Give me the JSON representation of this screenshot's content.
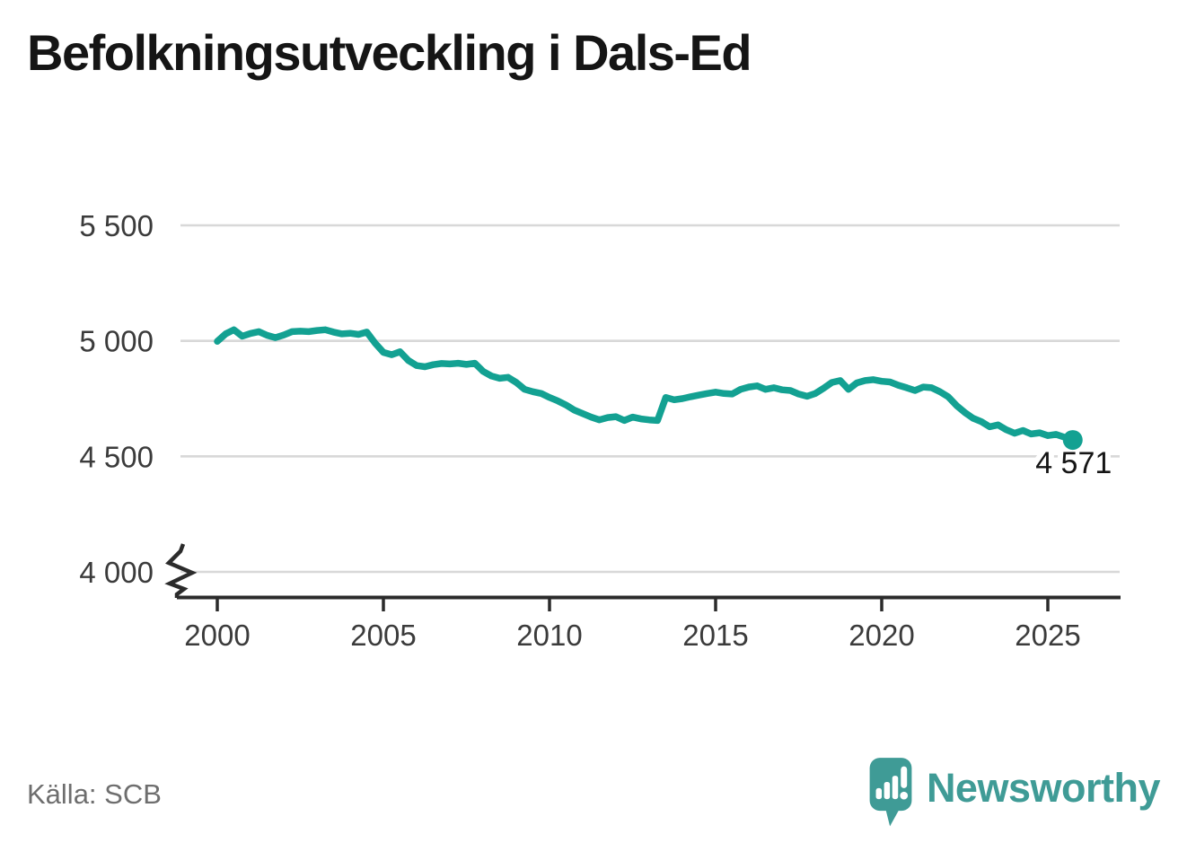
{
  "page": {
    "title": "Befolkningsutveckling i Dals-Ed",
    "source_label": "Källa: SCB",
    "brand": {
      "wordmark": "Newsworthy",
      "color": "#3f9b96"
    }
  },
  "chart_data": {
    "type": "line",
    "title": "Befolkningsutveckling i Dals-Ed",
    "xlabel": "",
    "ylabel": "",
    "legend": "none",
    "grid": "horizontal-only",
    "y_axis_break": true,
    "line_color": "#13a192",
    "axis_color": "#2b2b2b",
    "grid_color": "#d8d8d8",
    "tick_label_color": "#3b3b3b",
    "x_ticks": [
      2000,
      2005,
      2010,
      2015,
      2020,
      2025
    ],
    "x_tick_labels": [
      "2000",
      "2005",
      "2010",
      "2015",
      "2020",
      "2025"
    ],
    "y_ticks": [
      4000,
      4500,
      5000,
      5500
    ],
    "y_tick_labels": [
      "4 000",
      "4 500",
      "5 000",
      "5 500"
    ],
    "xlim": [
      1998.8,
      2027.3
    ],
    "ylim": [
      4000,
      5500
    ],
    "end_point": {
      "label": "4 571",
      "value": 4571,
      "x": 2025.75
    },
    "series": [
      {
        "name": "Dals-Ed befolkning",
        "points": [
          [
            2000.0,
            4998
          ],
          [
            2000.25,
            5030
          ],
          [
            2000.5,
            5048
          ],
          [
            2000.75,
            5020
          ],
          [
            2001.0,
            5032
          ],
          [
            2001.25,
            5040
          ],
          [
            2001.5,
            5024
          ],
          [
            2001.75,
            5014
          ],
          [
            2002.0,
            5025
          ],
          [
            2002.25,
            5040
          ],
          [
            2002.5,
            5042
          ],
          [
            2002.75,
            5040
          ],
          [
            2003.0,
            5045
          ],
          [
            2003.25,
            5048
          ],
          [
            2003.5,
            5038
          ],
          [
            2003.75,
            5030
          ],
          [
            2004.0,
            5033
          ],
          [
            2004.25,
            5028
          ],
          [
            2004.5,
            5038
          ],
          [
            2004.75,
            4990
          ],
          [
            2005.0,
            4950
          ],
          [
            2005.25,
            4940
          ],
          [
            2005.5,
            4953
          ],
          [
            2005.75,
            4915
          ],
          [
            2006.0,
            4893
          ],
          [
            2006.25,
            4888
          ],
          [
            2006.5,
            4897
          ],
          [
            2006.75,
            4902
          ],
          [
            2007.0,
            4900
          ],
          [
            2007.25,
            4903
          ],
          [
            2007.5,
            4898
          ],
          [
            2007.75,
            4903
          ],
          [
            2008.0,
            4868
          ],
          [
            2008.25,
            4848
          ],
          [
            2008.5,
            4838
          ],
          [
            2008.75,
            4842
          ],
          [
            2009.0,
            4820
          ],
          [
            2009.25,
            4790
          ],
          [
            2009.5,
            4780
          ],
          [
            2009.75,
            4772
          ],
          [
            2010.0,
            4755
          ],
          [
            2010.25,
            4740
          ],
          [
            2010.5,
            4722
          ],
          [
            2010.75,
            4700
          ],
          [
            2011.0,
            4685
          ],
          [
            2011.25,
            4670
          ],
          [
            2011.5,
            4658
          ],
          [
            2011.75,
            4668
          ],
          [
            2012.0,
            4672
          ],
          [
            2012.25,
            4655
          ],
          [
            2012.5,
            4670
          ],
          [
            2012.75,
            4662
          ],
          [
            2013.0,
            4658
          ],
          [
            2013.25,
            4655
          ],
          [
            2013.5,
            4755
          ],
          [
            2013.75,
            4745
          ],
          [
            2014.0,
            4750
          ],
          [
            2014.25,
            4758
          ],
          [
            2014.5,
            4765
          ],
          [
            2014.75,
            4772
          ],
          [
            2015.0,
            4778
          ],
          [
            2015.25,
            4772
          ],
          [
            2015.5,
            4770
          ],
          [
            2015.75,
            4790
          ],
          [
            2016.0,
            4800
          ],
          [
            2016.25,
            4805
          ],
          [
            2016.5,
            4790
          ],
          [
            2016.75,
            4797
          ],
          [
            2017.0,
            4788
          ],
          [
            2017.25,
            4785
          ],
          [
            2017.5,
            4770
          ],
          [
            2017.75,
            4760
          ],
          [
            2018.0,
            4772
          ],
          [
            2018.25,
            4795
          ],
          [
            2018.5,
            4820
          ],
          [
            2018.75,
            4828
          ],
          [
            2019.0,
            4790
          ],
          [
            2019.25,
            4818
          ],
          [
            2019.5,
            4828
          ],
          [
            2019.75,
            4832
          ],
          [
            2020.0,
            4825
          ],
          [
            2020.25,
            4822
          ],
          [
            2020.5,
            4808
          ],
          [
            2020.75,
            4797
          ],
          [
            2021.0,
            4785
          ],
          [
            2021.25,
            4800
          ],
          [
            2021.5,
            4797
          ],
          [
            2021.75,
            4780
          ],
          [
            2022.0,
            4758
          ],
          [
            2022.25,
            4720
          ],
          [
            2022.5,
            4690
          ],
          [
            2022.75,
            4665
          ],
          [
            2023.0,
            4650
          ],
          [
            2023.25,
            4628
          ],
          [
            2023.5,
            4636
          ],
          [
            2023.75,
            4615
          ],
          [
            2024.0,
            4600
          ],
          [
            2024.25,
            4612
          ],
          [
            2024.5,
            4597
          ],
          [
            2024.75,
            4602
          ],
          [
            2025.0,
            4590
          ],
          [
            2025.25,
            4595
          ],
          [
            2025.5,
            4583
          ],
          [
            2025.75,
            4571
          ]
        ]
      }
    ]
  }
}
